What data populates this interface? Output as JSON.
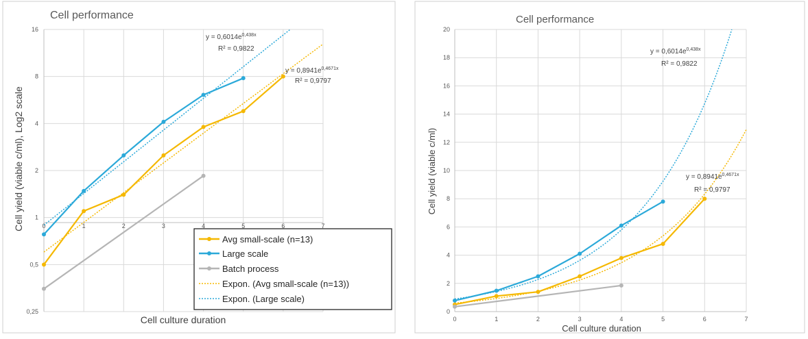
{
  "chart_data": [
    {
      "type": "line",
      "title": "Cell performance",
      "xlabel": "Cell culture duration",
      "ylabel": "Cell yield (viable c/ml), Log2 scale",
      "yscale": "log2",
      "grid": true,
      "xlim": [
        0,
        7
      ],
      "ylim": [
        0.25,
        16
      ],
      "x_ticks": [
        "0",
        "1",
        "2",
        "3",
        "4",
        "5",
        "6",
        "7"
      ],
      "y_ticks": [
        {
          "value": 0.25,
          "label": "0,25"
        },
        {
          "value": 0.5,
          "label": "0,5"
        },
        {
          "value": 1,
          "label": "1"
        },
        {
          "value": 2,
          "label": "2"
        },
        {
          "value": 4,
          "label": "4"
        },
        {
          "value": 8,
          "label": "8"
        },
        {
          "value": 16,
          "label": "16"
        }
      ],
      "legend_position": "bottom-right",
      "legend": [
        "Avg small-scale (n=13)",
        "Large scale",
        "Batch process",
        "Expon. (Avg small-scale (n=13))",
        "Expon. (Large scale)"
      ],
      "series": [
        {
          "name": "Avg small-scale (n=13)",
          "color": "#F5B800",
          "x": [
            0,
            1,
            2,
            3,
            4,
            5,
            6
          ],
          "values": [
            0.5,
            1.1,
            1.4,
            2.5,
            3.8,
            4.8,
            8.0
          ]
        },
        {
          "name": "Large scale",
          "color": "#2BA9D9",
          "x": [
            0,
            1,
            2,
            3,
            4,
            5
          ],
          "values": [
            0.78,
            1.48,
            2.5,
            4.1,
            6.1,
            7.8
          ]
        },
        {
          "name": "Batch process",
          "color": "#B5B5B5",
          "x": [
            0,
            4
          ],
          "values": [
            0.35,
            1.85
          ]
        }
      ],
      "trendlines": [
        {
          "name": "Expon. (Avg small-scale (n=13))",
          "color": "#F5B800",
          "a": 0.6014,
          "b": 0.438,
          "equation": "y = 0,6014e",
          "exponent": "0,438x",
          "r2": "R² = 0,9822"
        },
        {
          "name": "Expon. (Large scale)",
          "color": "#2BA9D9",
          "a": 0.8941,
          "b": 0.4671,
          "equation": "y = 0,8941e",
          "exponent": "0,4671x",
          "r2": "R² = 0,9797"
        }
      ]
    },
    {
      "type": "line",
      "title": "Cell performance",
      "xlabel": "Cell culture duration",
      "ylabel": "Cell yield (viable c/ml)",
      "yscale": "linear",
      "grid": true,
      "xlim": [
        0,
        7
      ],
      "ylim": [
        0,
        20
      ],
      "x_ticks": [
        "0",
        "1",
        "2",
        "3",
        "4",
        "5",
        "6",
        "7"
      ],
      "y_ticks": [
        {
          "value": 0,
          "label": "0"
        },
        {
          "value": 2,
          "label": "2"
        },
        {
          "value": 4,
          "label": "4"
        },
        {
          "value": 6,
          "label": "6"
        },
        {
          "value": 8,
          "label": "8"
        },
        {
          "value": 10,
          "label": "10"
        },
        {
          "value": 12,
          "label": "12"
        },
        {
          "value": 14,
          "label": "14"
        },
        {
          "value": 16,
          "label": "16"
        },
        {
          "value": 18,
          "label": "18"
        },
        {
          "value": 20,
          "label": "20"
        }
      ],
      "series": [
        {
          "name": "Avg small-scale (n=13)",
          "color": "#F5B800",
          "x": [
            0,
            1,
            2,
            3,
            4,
            5,
            6
          ],
          "values": [
            0.5,
            1.1,
            1.4,
            2.5,
            3.8,
            4.8,
            8.0
          ]
        },
        {
          "name": "Large scale",
          "color": "#2BA9D9",
          "x": [
            0,
            1,
            2,
            3,
            4,
            5
          ],
          "values": [
            0.78,
            1.48,
            2.5,
            4.1,
            6.1,
            7.8
          ]
        },
        {
          "name": "Batch process",
          "color": "#B5B5B5",
          "x": [
            0,
            4
          ],
          "values": [
            0.35,
            1.85
          ]
        }
      ],
      "trendlines": [
        {
          "name": "Expon. (Avg small-scale (n=13))",
          "color": "#F5B800",
          "a": 0.6014,
          "b": 0.438,
          "equation": "y = 0,6014e",
          "exponent": "0,438x",
          "r2": "R² = 0,9822"
        },
        {
          "name": "Expon. (Large scale)",
          "color": "#2BA9D9",
          "a": 0.8941,
          "b": 0.4671,
          "equation": "y = 0,8941e",
          "exponent": "0,4671x",
          "r2": "R² = 0,9797"
        }
      ]
    }
  ]
}
